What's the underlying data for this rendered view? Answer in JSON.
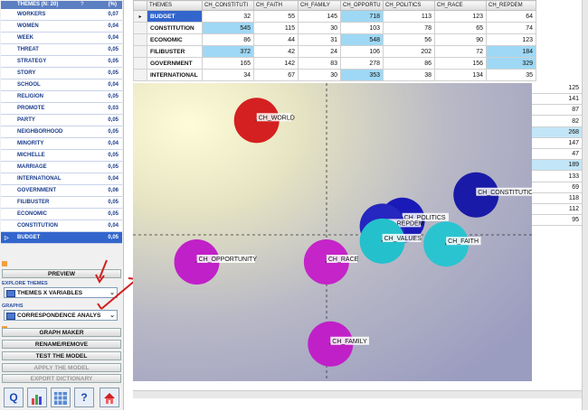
{
  "themes_panel": {
    "header_label": "THEMES (N: 20)",
    "header_pct": "(%)",
    "items": [
      {
        "name": "WORKERS",
        "pct": "0,07"
      },
      {
        "name": "WOMEN",
        "pct": "0,04"
      },
      {
        "name": "WEEK",
        "pct": "0,04"
      },
      {
        "name": "THREAT",
        "pct": "0,05"
      },
      {
        "name": "STRATEGY",
        "pct": "0,05"
      },
      {
        "name": "STORY",
        "pct": "0,05"
      },
      {
        "name": "SCHOOL",
        "pct": "0,04"
      },
      {
        "name": "RELIGION",
        "pct": "0,05"
      },
      {
        "name": "PROMOTE",
        "pct": "0,03"
      },
      {
        "name": "PARTY",
        "pct": "0,05"
      },
      {
        "name": "NEIGHBORHOOD",
        "pct": "0,05"
      },
      {
        "name": "MINORITY",
        "pct": "0,04"
      },
      {
        "name": "MICHELLE",
        "pct": "0,05"
      },
      {
        "name": "MARRIAGE",
        "pct": "0,05"
      },
      {
        "name": "INTERNATIONAL",
        "pct": "0,04"
      },
      {
        "name": "GOVERNMENT",
        "pct": "0,06"
      },
      {
        "name": "FILIBUSTER",
        "pct": "0,05"
      },
      {
        "name": "ECONOMIC",
        "pct": "0,05"
      },
      {
        "name": "CONSTITUTION",
        "pct": "0,04"
      },
      {
        "name": "BUDGET",
        "pct": "0,05"
      }
    ]
  },
  "controls": {
    "preview_label": "PREVIEW",
    "explore_section": "EXPLORE THEMES",
    "explore_value": "THEMES X VARIABLES",
    "graphs_section": "GRAPHS",
    "graphs_value": "CORRESPONDENCE ANALYS",
    "graph_maker_section_mark": "",
    "graph_maker_label": "GRAPH MAKER",
    "rename_label": "RENAME/REMOVE",
    "test_label": "TEST THE MODEL",
    "apply_label": "APPLY THE MODEL",
    "export_label": "EXPORT DICTIONARY"
  },
  "toolbar_icons": [
    "help-icon",
    "chart-icon",
    "grid-icon",
    "question-icon",
    "home-icon"
  ],
  "table": {
    "columns": [
      "THEMES",
      "CH_CONSTITUTI",
      "CH_FAITH",
      "CH_FAMILY",
      "CH_OPPORTU",
      "CH_POLITICS",
      "CH_RACE",
      "CH_REPDEM"
    ],
    "rows": [
      {
        "label": "BUDGET",
        "values": [
          "32",
          "55",
          "145",
          "718",
          "113",
          "123",
          "64"
        ]
      },
      {
        "label": "CONSTITUTION",
        "values": [
          "545",
          "115",
          "30",
          "103",
          "78",
          "65",
          "74"
        ]
      },
      {
        "label": "ECONOMIC",
        "values": [
          "86",
          "44",
          "31",
          "548",
          "56",
          "90",
          "123"
        ]
      },
      {
        "label": "FILIBUSTER",
        "values": [
          "372",
          "42",
          "24",
          "106",
          "202",
          "72",
          "184"
        ]
      },
      {
        "label": "GOVERNMENT",
        "values": [
          "165",
          "142",
          "83",
          "278",
          "86",
          "156",
          "329"
        ]
      },
      {
        "label": "INTERNATIONAL",
        "values": [
          "34",
          "67",
          "30",
          "353",
          "38",
          "134",
          "35"
        ]
      }
    ]
  },
  "repdem_column_extra": [
    "125",
    "141",
    "87",
    "82",
    "268",
    "147",
    "47",
    "189",
    "133",
    "69",
    "118",
    "112",
    "95"
  ],
  "chart_data": {
    "type": "scatter",
    "title": "",
    "xlim": [
      -1,
      1
    ],
    "ylim": [
      -1,
      1
    ],
    "points": [
      {
        "label": "CH_WORLD",
        "x": -0.38,
        "y": 0.75,
        "color": "#d42020"
      },
      {
        "label": "CH_CONSTITUTION",
        "x": 0.72,
        "y": 0.25,
        "color": "#1a1aa8"
      },
      {
        "label": "CH_POLITICS",
        "x": 0.35,
        "y": 0.08,
        "color": "#1a1ab8"
      },
      {
        "label": "CH_REPDEM",
        "x": 0.25,
        "y": 0.04,
        "color": "#2626c0"
      },
      {
        "label": "CH_VALUES",
        "x": 0.25,
        "y": -0.06,
        "color": "#24c0cc"
      },
      {
        "label": "CH_FAITH",
        "x": 0.57,
        "y": -0.08,
        "color": "#2ac4d0"
      },
      {
        "label": "CH_OPPORTUNITY",
        "x": -0.68,
        "y": -0.2,
        "color": "#c020c8"
      },
      {
        "label": "CH_RACE",
        "x": -0.03,
        "y": -0.2,
        "color": "#c424c8"
      },
      {
        "label": "CH_FAMILY",
        "x": -0.01,
        "y": -0.75,
        "color": "#c020c8"
      }
    ]
  }
}
